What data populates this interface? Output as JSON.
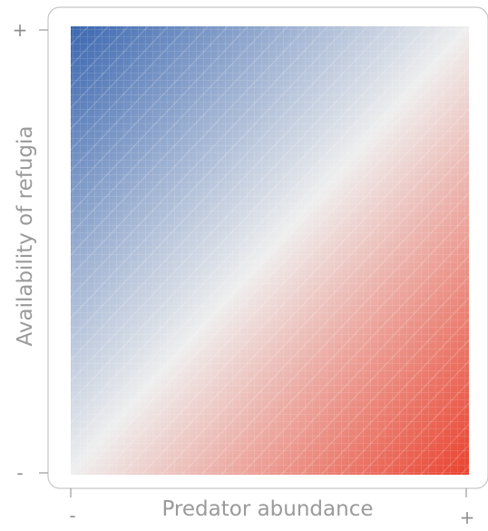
{
  "chart_data": {
    "type": "heatmap",
    "title": "",
    "xlabel": "Predator abundance",
    "ylabel": "Availability of refugia",
    "x_ticks": [
      "-",
      "+"
    ],
    "y_ticks": [
      "-",
      "+"
    ],
    "color_scale": {
      "low_color": "#e9422e",
      "mid_color": "#eeeeee",
      "high_color": "#3b67b0",
      "direction": "increases toward high refugia and low predator abundance"
    },
    "grid": true,
    "legend": "none"
  }
}
